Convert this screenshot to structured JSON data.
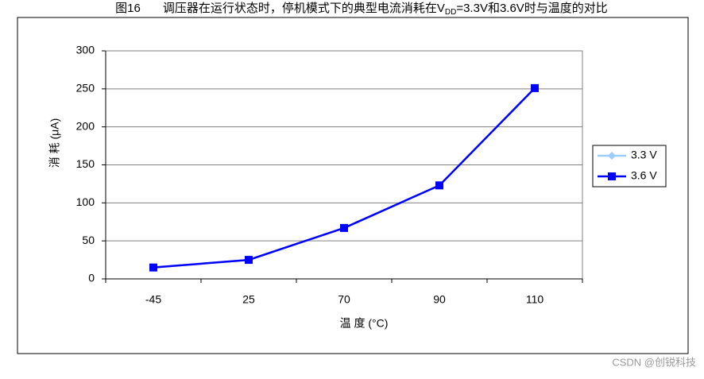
{
  "chart_data": {
    "type": "line",
    "title": [
      "图16",
      "调压器在运行状态时，停机模式下的典型电流消耗在V",
      "DD",
      "=3.3V和3.6V时与温度的对比"
    ],
    "x_label": "温 度 (°C)",
    "y_label": "消 耗 (μA)",
    "categories": [
      "-45",
      "25",
      "70",
      "90",
      "110"
    ],
    "series": [
      {
        "name": "3.3 V",
        "color": "#99ccff",
        "marker": "diamond",
        "values": [
          15,
          25,
          67,
          123,
          251
        ]
      },
      {
        "name": "3.6 V",
        "color": "#0000ff",
        "marker": "square",
        "values": [
          15,
          25,
          67,
          123,
          251
        ]
      }
    ],
    "ylim": [
      0,
      300
    ],
    "yticks": [
      0,
      50,
      100,
      150,
      200,
      250,
      300
    ],
    "grid": true,
    "legend": "right",
    "watermark": "CSDN @创锐科技"
  }
}
